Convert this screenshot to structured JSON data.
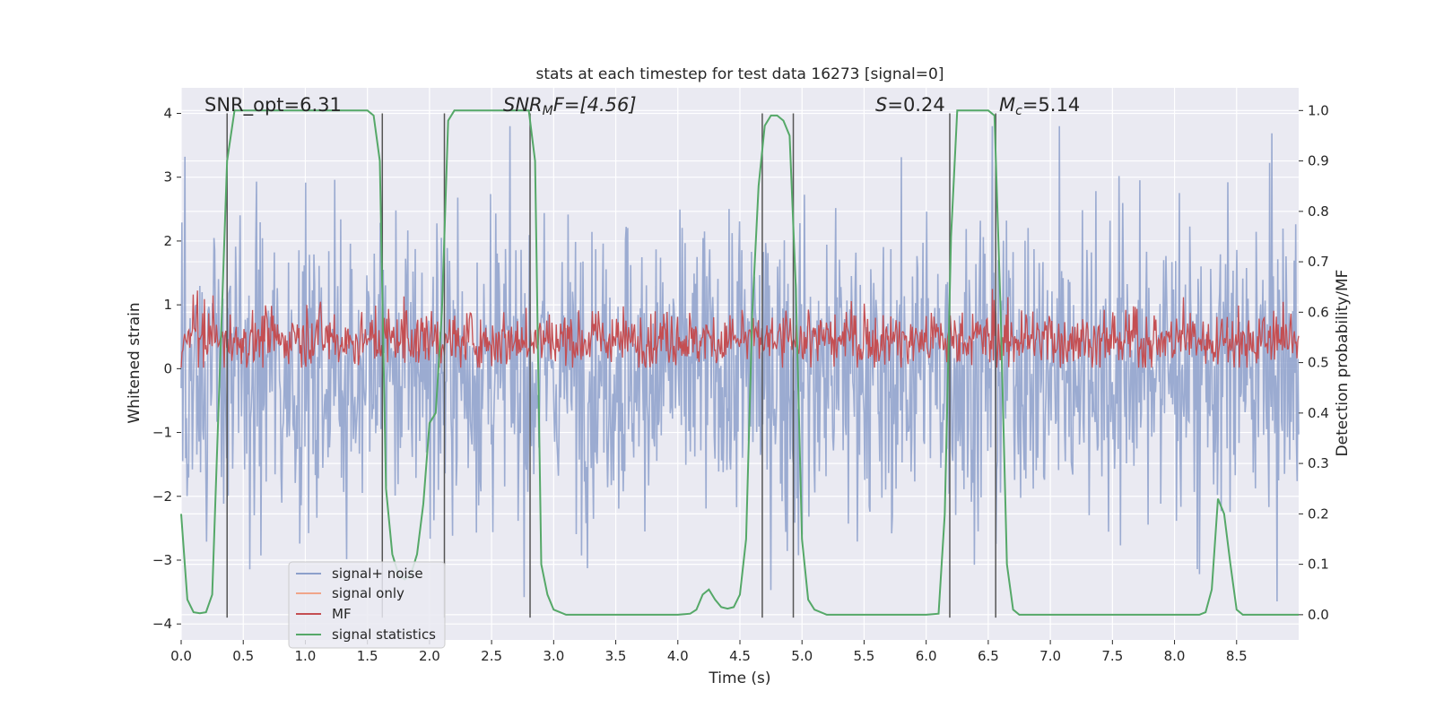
{
  "chart_data": {
    "type": "line",
    "title": "stats at each timestep for test data 16273 [signal=0]",
    "xlabel": "Time (s)",
    "ylabel_left": "Whitened strain",
    "ylabel_right": "Detection probability/MF",
    "xlim": [
      0.0,
      9.0
    ],
    "ylim_left": [
      -4.25,
      4.4
    ],
    "ylim_right": [
      -0.05,
      1.045
    ],
    "xticks": [
      0.0,
      0.5,
      1.0,
      1.5,
      2.0,
      2.5,
      3.0,
      3.5,
      4.0,
      4.5,
      5.0,
      5.5,
      6.0,
      6.5,
      7.0,
      7.5,
      8.0,
      8.5
    ],
    "xtick_labels": [
      "0.0",
      "0.5",
      "1.0",
      "1.5",
      "2.0",
      "2.5",
      "3.0",
      "3.5",
      "4.0",
      "4.5",
      "5.0",
      "5.5",
      "6.0",
      "6.5",
      "7.0",
      "7.5",
      "8.0",
      "8.5"
    ],
    "yticks_left": [
      4,
      3,
      2,
      1,
      0,
      -1,
      -2,
      -3,
      -4
    ],
    "ytick_labels_left": [
      "4",
      "3",
      "2",
      "1",
      "0",
      "−1",
      "−2",
      "−3",
      "−4"
    ],
    "yticks_right": [
      1.0,
      0.9,
      0.8,
      0.7,
      0.6,
      0.5,
      0.4,
      0.3,
      0.2,
      0.1,
      0.0
    ],
    "ytick_labels_right": [
      "1.0",
      "0.9",
      "0.8",
      "0.7",
      "0.6",
      "0.5",
      "0.4",
      "0.3",
      "0.2",
      "0.1",
      "0.0"
    ],
    "grid": true,
    "annotations": {
      "snr_opt": "SNR_opt=6.31",
      "snr_mf_base": "SNR",
      "snr_mf_sub": "M",
      "snr_mf_rest": "F=[4.56]",
      "s_base": "S",
      "s_rest": "=0.24",
      "mc_base": "M",
      "mc_sub": "c",
      "mc_rest": "=5.14"
    },
    "legend": {
      "position": "lower-left",
      "entries": [
        {
          "label": "signal+ noise",
          "color": "#8da0cb"
        },
        {
          "label": "signal only",
          "color": "#f0a58a"
        },
        {
          "label": "MF",
          "color": "#c44e52"
        },
        {
          "label": "signal statistics",
          "color": "#55a868"
        }
      ]
    },
    "vertical_lines": [
      0.37,
      1.62,
      2.12,
      2.81,
      4.68,
      4.93,
      6.19,
      6.56
    ],
    "series": [
      {
        "name": "signal statistics",
        "axis": "right",
        "color": "#55a868",
        "x": [
          0.0,
          0.05,
          0.1,
          0.15,
          0.2,
          0.25,
          0.3,
          0.37,
          0.43,
          0.5,
          0.6,
          0.7,
          0.8,
          0.9,
          1.0,
          1.1,
          1.2,
          1.3,
          1.4,
          1.5,
          1.55,
          1.6,
          1.65,
          1.7,
          1.75,
          1.8,
          1.85,
          1.9,
          1.95,
          2.0,
          2.05,
          2.1,
          2.15,
          2.2,
          2.3,
          2.4,
          2.5,
          2.6,
          2.7,
          2.8,
          2.85,
          2.9,
          2.95,
          3.0,
          3.1,
          3.2,
          3.4,
          3.6,
          3.8,
          4.0,
          4.1,
          4.15,
          4.2,
          4.25,
          4.3,
          4.35,
          4.4,
          4.45,
          4.5,
          4.55,
          4.6,
          4.65,
          4.7,
          4.75,
          4.8,
          4.85,
          4.9,
          4.95,
          5.0,
          5.05,
          5.1,
          5.2,
          5.4,
          5.6,
          5.8,
          6.0,
          6.1,
          6.15,
          6.2,
          6.25,
          6.3,
          6.4,
          6.5,
          6.55,
          6.6,
          6.65,
          6.7,
          6.75,
          6.8,
          7.0,
          7.5,
          8.0,
          8.2,
          8.25,
          8.3,
          8.35,
          8.4,
          8.45,
          8.5,
          8.55,
          8.6,
          8.7,
          8.8,
          9.0
        ],
        "y": [
          0.2,
          0.03,
          0.005,
          0.003,
          0.005,
          0.04,
          0.4,
          0.9,
          1.0,
          1.0,
          1.0,
          1.0,
          1.0,
          1.0,
          1.0,
          1.0,
          1.0,
          1.0,
          1.0,
          1.0,
          0.99,
          0.9,
          0.25,
          0.12,
          0.08,
          0.07,
          0.08,
          0.12,
          0.22,
          0.38,
          0.4,
          0.6,
          0.98,
          1.0,
          1.0,
          1.0,
          1.0,
          1.0,
          1.0,
          1.0,
          0.9,
          0.1,
          0.04,
          0.01,
          0.0,
          0.0,
          0.0,
          0.0,
          0.0,
          0.0,
          0.002,
          0.01,
          0.04,
          0.05,
          0.03,
          0.015,
          0.012,
          0.015,
          0.04,
          0.15,
          0.6,
          0.85,
          0.97,
          0.99,
          0.99,
          0.98,
          0.95,
          0.65,
          0.15,
          0.03,
          0.01,
          0.0,
          0.0,
          0.0,
          0.0,
          0.0,
          0.002,
          0.2,
          0.75,
          1.0,
          1.0,
          1.0,
          1.0,
          0.99,
          0.6,
          0.1,
          0.01,
          0.0,
          0.0,
          0.0,
          0.0,
          0.0,
          0.0,
          0.005,
          0.05,
          0.23,
          0.2,
          0.1,
          0.01,
          0.0,
          0.0,
          0.0,
          0.0,
          0.0
        ]
      }
    ],
    "noise_series": [
      {
        "name": "signal+ noise",
        "axis": "left",
        "color": "#8da0cb",
        "dense": true,
        "typical_range": [
          -2.5,
          2.5
        ],
        "peak_range": [
          -3.9,
          3.8
        ]
      },
      {
        "name": "MF",
        "axis": "right",
        "color": "#c44e52",
        "dense": true,
        "typical_range": [
          0.5,
          0.6
        ],
        "peak_range": [
          0.49,
          0.66
        ]
      }
    ]
  }
}
